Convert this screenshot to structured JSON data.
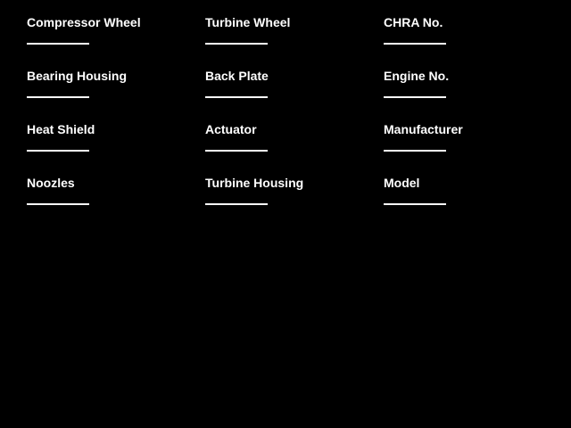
{
  "colors": {
    "background": "#000000",
    "label_text": "#ffffff",
    "field_underline": "#ffffff"
  },
  "form": {
    "columns": [
      {
        "fields": [
          {
            "label": "Compressor Wheel",
            "value": ""
          },
          {
            "label": "Bearing Housing",
            "value": ""
          },
          {
            "label": "Heat Shield",
            "value": ""
          },
          {
            "label": "Noozles",
            "value": ""
          }
        ]
      },
      {
        "fields": [
          {
            "label": "Turbine Wheel",
            "value": ""
          },
          {
            "label": "Back Plate",
            "value": ""
          },
          {
            "label": "Actuator",
            "value": ""
          },
          {
            "label": "Turbine Housing",
            "value": ""
          }
        ]
      },
      {
        "fields": [
          {
            "label": "CHRA No.",
            "value": ""
          },
          {
            "label": "Engine No.",
            "value": ""
          },
          {
            "label": "Manufacturer",
            "value": ""
          },
          {
            "label": "Model",
            "value": ""
          }
        ]
      }
    ]
  }
}
